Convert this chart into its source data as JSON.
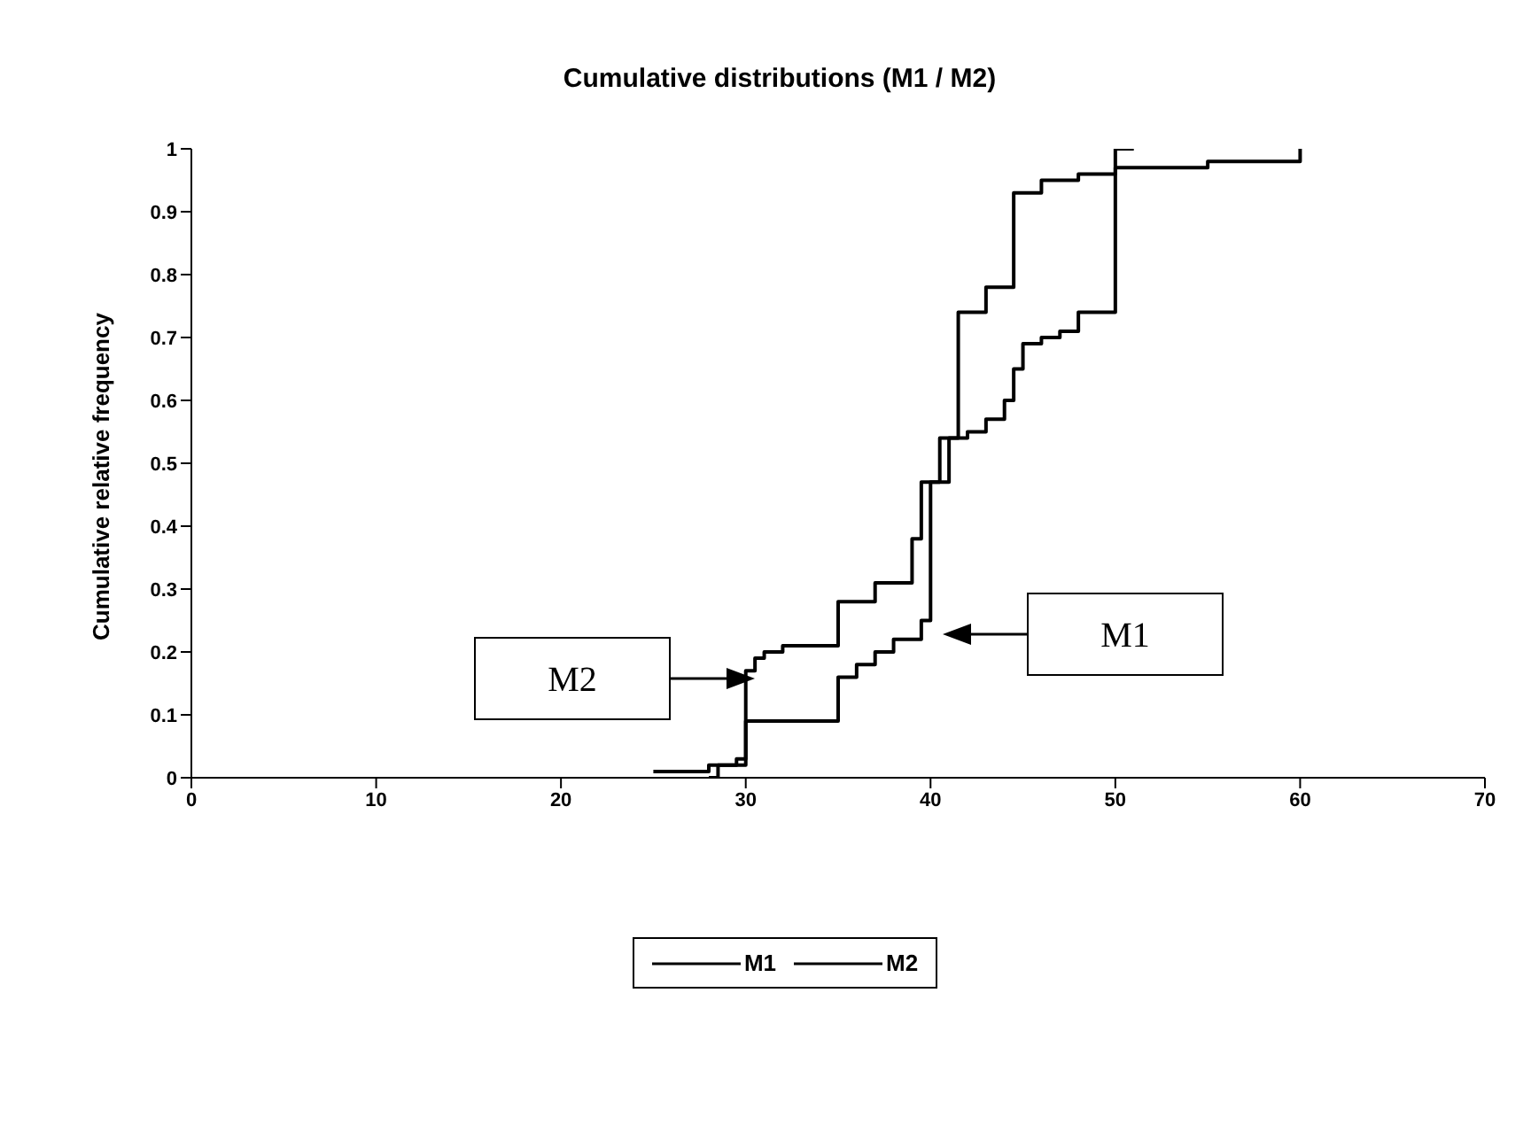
{
  "chart_data": {
    "type": "step",
    "title": "Cumulative distributions (M1 / M2)",
    "ylabel": "Cumulative relative frequency",
    "xlim": [
      0,
      70
    ],
    "xticks": [
      0,
      10,
      20,
      30,
      40,
      50,
      60,
      70
    ],
    "ylim": [
      0,
      1
    ],
    "yticks": [
      0,
      0.1,
      0.2,
      0.3,
      0.4,
      0.5,
      0.6,
      0.7,
      0.8,
      0.9,
      1
    ],
    "grid": false,
    "legend": "bottom",
    "marker": "none",
    "line_style": "solid",
    "series": [
      {
        "name": "M1",
        "color": "#000000",
        "x": [
          28,
          28.5,
          29.5,
          30,
          35,
          36,
          37,
          38,
          39.5,
          40,
          41,
          42,
          43,
          44,
          44.5,
          45,
          46,
          47,
          48,
          50,
          55,
          60
        ],
        "values": [
          0,
          0.02,
          0.03,
          0.09,
          0.16,
          0.18,
          0.2,
          0.22,
          0.25,
          0.47,
          0.54,
          0.55,
          0.57,
          0.6,
          0.65,
          0.69,
          0.7,
          0.71,
          0.74,
          0.97,
          0.98,
          1
        ]
      },
      {
        "name": "M2",
        "color": "#000000",
        "x": [
          25,
          28,
          30,
          30.5,
          31,
          32,
          35,
          37,
          39,
          39.5,
          40.5,
          41.5,
          43,
          44.5,
          46,
          48,
          50,
          51
        ],
        "values": [
          0.01,
          0.02,
          0.17,
          0.19,
          0.2,
          0.21,
          0.28,
          0.31,
          0.38,
          0.47,
          0.54,
          0.74,
          0.78,
          0.93,
          0.95,
          0.96,
          1,
          1
        ]
      }
    ],
    "annotations": [
      "M2",
      "M1"
    ]
  }
}
